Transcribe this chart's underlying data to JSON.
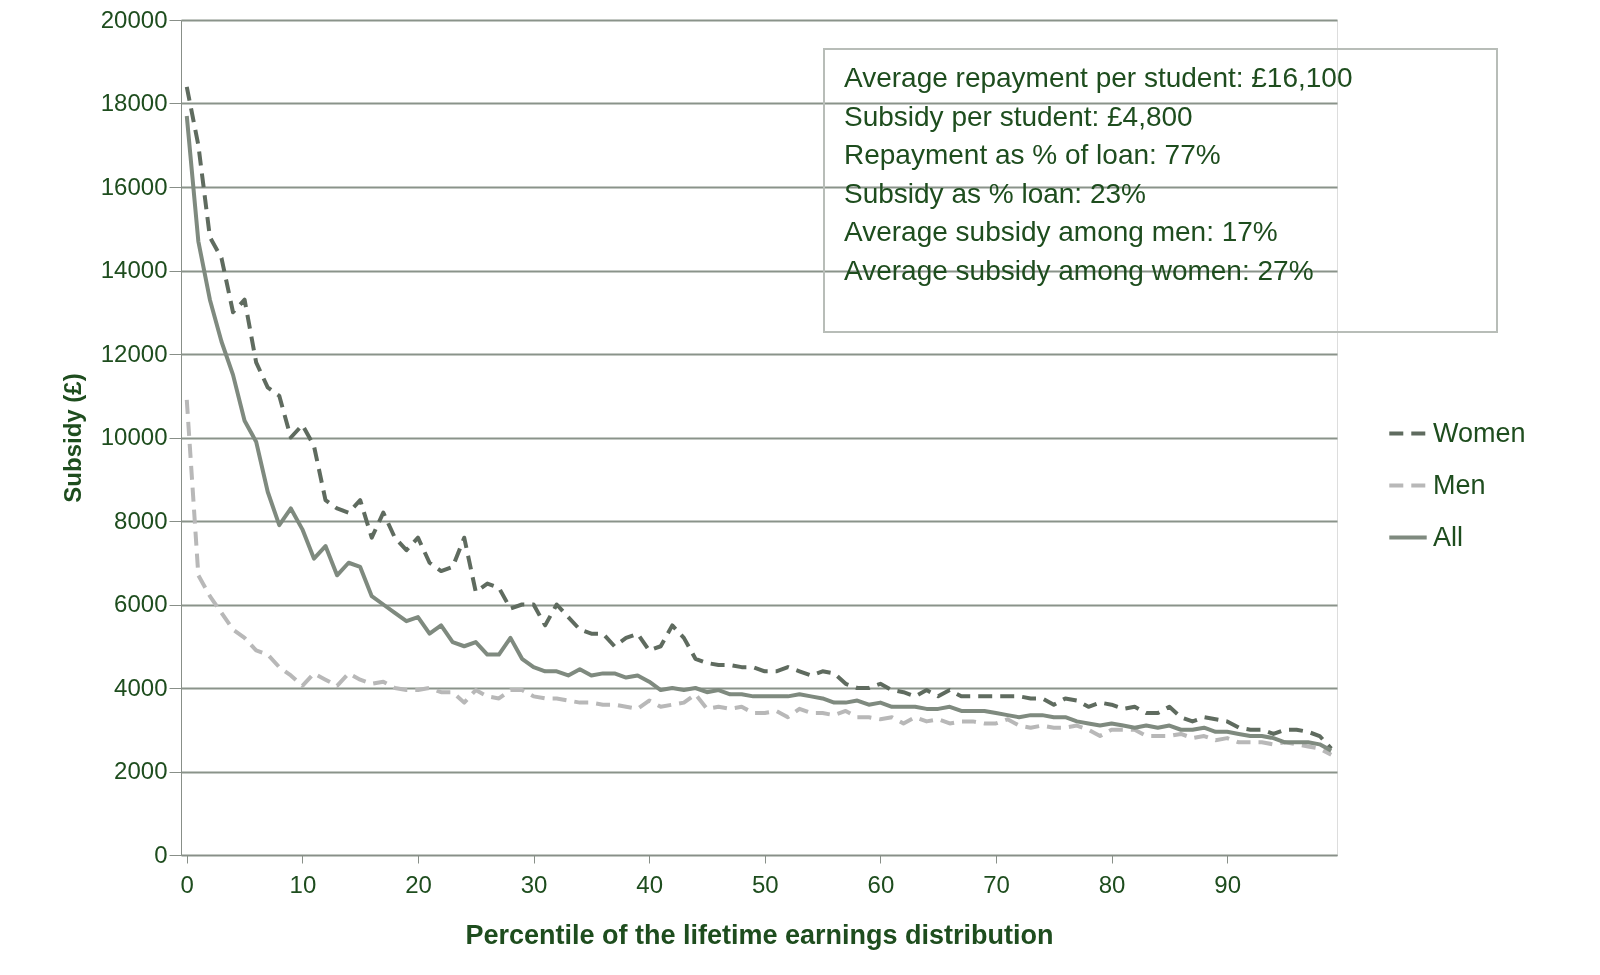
{
  "chart_data": {
    "type": "line",
    "xlabel": "Percentile of the lifetime earnings distribution",
    "ylabel": "Subsidy (£)",
    "x": [
      0,
      1,
      2,
      3,
      4,
      5,
      6,
      7,
      8,
      9,
      10,
      11,
      12,
      13,
      14,
      15,
      16,
      17,
      18,
      19,
      20,
      21,
      22,
      23,
      24,
      25,
      26,
      27,
      28,
      29,
      30,
      31,
      32,
      33,
      34,
      35,
      36,
      37,
      38,
      39,
      40,
      41,
      42,
      43,
      44,
      45,
      46,
      47,
      48,
      49,
      50,
      51,
      52,
      53,
      54,
      55,
      56,
      57,
      58,
      59,
      60,
      61,
      62,
      63,
      64,
      65,
      66,
      67,
      68,
      69,
      70,
      71,
      72,
      73,
      74,
      75,
      76,
      77,
      78,
      79,
      80,
      81,
      82,
      83,
      84,
      85,
      86,
      87,
      88,
      89,
      90,
      91,
      92,
      93,
      94,
      95,
      96,
      97,
      98,
      99
    ],
    "xlim": [
      -0.5,
      99.5
    ],
    "xticks": [
      0,
      10,
      20,
      30,
      40,
      50,
      60,
      70,
      80,
      90
    ],
    "ylim": [
      0,
      20000
    ],
    "yticks": [
      0,
      2000,
      4000,
      6000,
      8000,
      10000,
      12000,
      14000,
      16000,
      18000,
      20000
    ],
    "grid": "y",
    "legend": "right",
    "series": [
      {
        "name": "Women",
        "color": "#5f6b5f",
        "line_style": "dashed",
        "values": [
          18400,
          17000,
          14800,
          14300,
          13000,
          13300,
          11800,
          11200,
          11000,
          10000,
          10300,
          9800,
          8500,
          8300,
          8200,
          8500,
          7600,
          8200,
          7600,
          7300,
          7600,
          7000,
          6800,
          6900,
          7600,
          6300,
          6500,
          6400,
          5900,
          6000,
          6000,
          5500,
          6000,
          5700,
          5400,
          5300,
          5300,
          5000,
          5200,
          5300,
          4900,
          5000,
          5500,
          5200,
          4700,
          4600,
          4550,
          4550,
          4500,
          4500,
          4400,
          4400,
          4500,
          4400,
          4300,
          4400,
          4350,
          4100,
          4000,
          4000,
          4100,
          3950,
          3900,
          3800,
          3950,
          3800,
          3950,
          3800,
          3800,
          3800,
          3800,
          3800,
          3800,
          3750,
          3750,
          3600,
          3750,
          3700,
          3550,
          3650,
          3600,
          3500,
          3550,
          3400,
          3400,
          3550,
          3300,
          3200,
          3300,
          3250,
          3200,
          3050,
          3000,
          3000,
          2900,
          3000,
          3000,
          2950,
          2850,
          2550
        ]
      },
      {
        "name": "Men",
        "color": "#b8b8b8",
        "line_style": "dashed",
        "values": [
          10900,
          6700,
          6200,
          5800,
          5400,
          5200,
          4900,
          4800,
          4500,
          4300,
          4050,
          4350,
          4200,
          4050,
          4350,
          4200,
          4100,
          4150,
          4000,
          3950,
          3950,
          4000,
          3900,
          3900,
          3650,
          3950,
          3800,
          3750,
          3950,
          3950,
          3800,
          3750,
          3750,
          3700,
          3650,
          3650,
          3600,
          3600,
          3550,
          3500,
          3700,
          3550,
          3600,
          3650,
          3850,
          3500,
          3550,
          3500,
          3550,
          3400,
          3400,
          3450,
          3300,
          3500,
          3400,
          3400,
          3350,
          3450,
          3300,
          3300,
          3250,
          3300,
          3150,
          3300,
          3200,
          3250,
          3150,
          3200,
          3200,
          3150,
          3150,
          3250,
          3100,
          3050,
          3100,
          3050,
          3050,
          3100,
          3000,
          2850,
          3000,
          3000,
          3000,
          2850,
          2850,
          2850,
          2900,
          2800,
          2850,
          2750,
          2800,
          2700,
          2700,
          2700,
          2650,
          2700,
          2650,
          2600,
          2550,
          2400
        ]
      },
      {
        "name": "All",
        "color": "#7f8a7f",
        "line_style": "solid",
        "values": [
          17700,
          14700,
          13300,
          12300,
          11500,
          10400,
          9900,
          8700,
          7900,
          8300,
          7800,
          7100,
          7400,
          6700,
          7000,
          6900,
          6200,
          6000,
          5800,
          5600,
          5700,
          5300,
          5500,
          5100,
          5000,
          5100,
          4800,
          4800,
          5200,
          4700,
          4500,
          4400,
          4400,
          4300,
          4450,
          4300,
          4350,
          4350,
          4250,
          4300,
          4150,
          3950,
          4000,
          3950,
          4000,
          3900,
          3950,
          3850,
          3850,
          3800,
          3800,
          3800,
          3800,
          3850,
          3800,
          3750,
          3650,
          3650,
          3700,
          3600,
          3650,
          3550,
          3550,
          3550,
          3500,
          3500,
          3550,
          3450,
          3450,
          3450,
          3400,
          3350,
          3300,
          3350,
          3350,
          3300,
          3300,
          3200,
          3150,
          3100,
          3150,
          3100,
          3050,
          3100,
          3050,
          3100,
          3000,
          3000,
          3050,
          2950,
          2950,
          2900,
          2850,
          2850,
          2800,
          2700,
          2700,
          2700,
          2650,
          2500
        ]
      }
    ],
    "annotations": [
      "Average repayment per student: £16,100",
      "Subsidy per student: £4,800",
      "Repayment as % of loan: 77%",
      "Subsidy as % loan: 23%",
      "Average subsidy among men: 17%",
      "Average subsidy among women: 27%"
    ]
  }
}
